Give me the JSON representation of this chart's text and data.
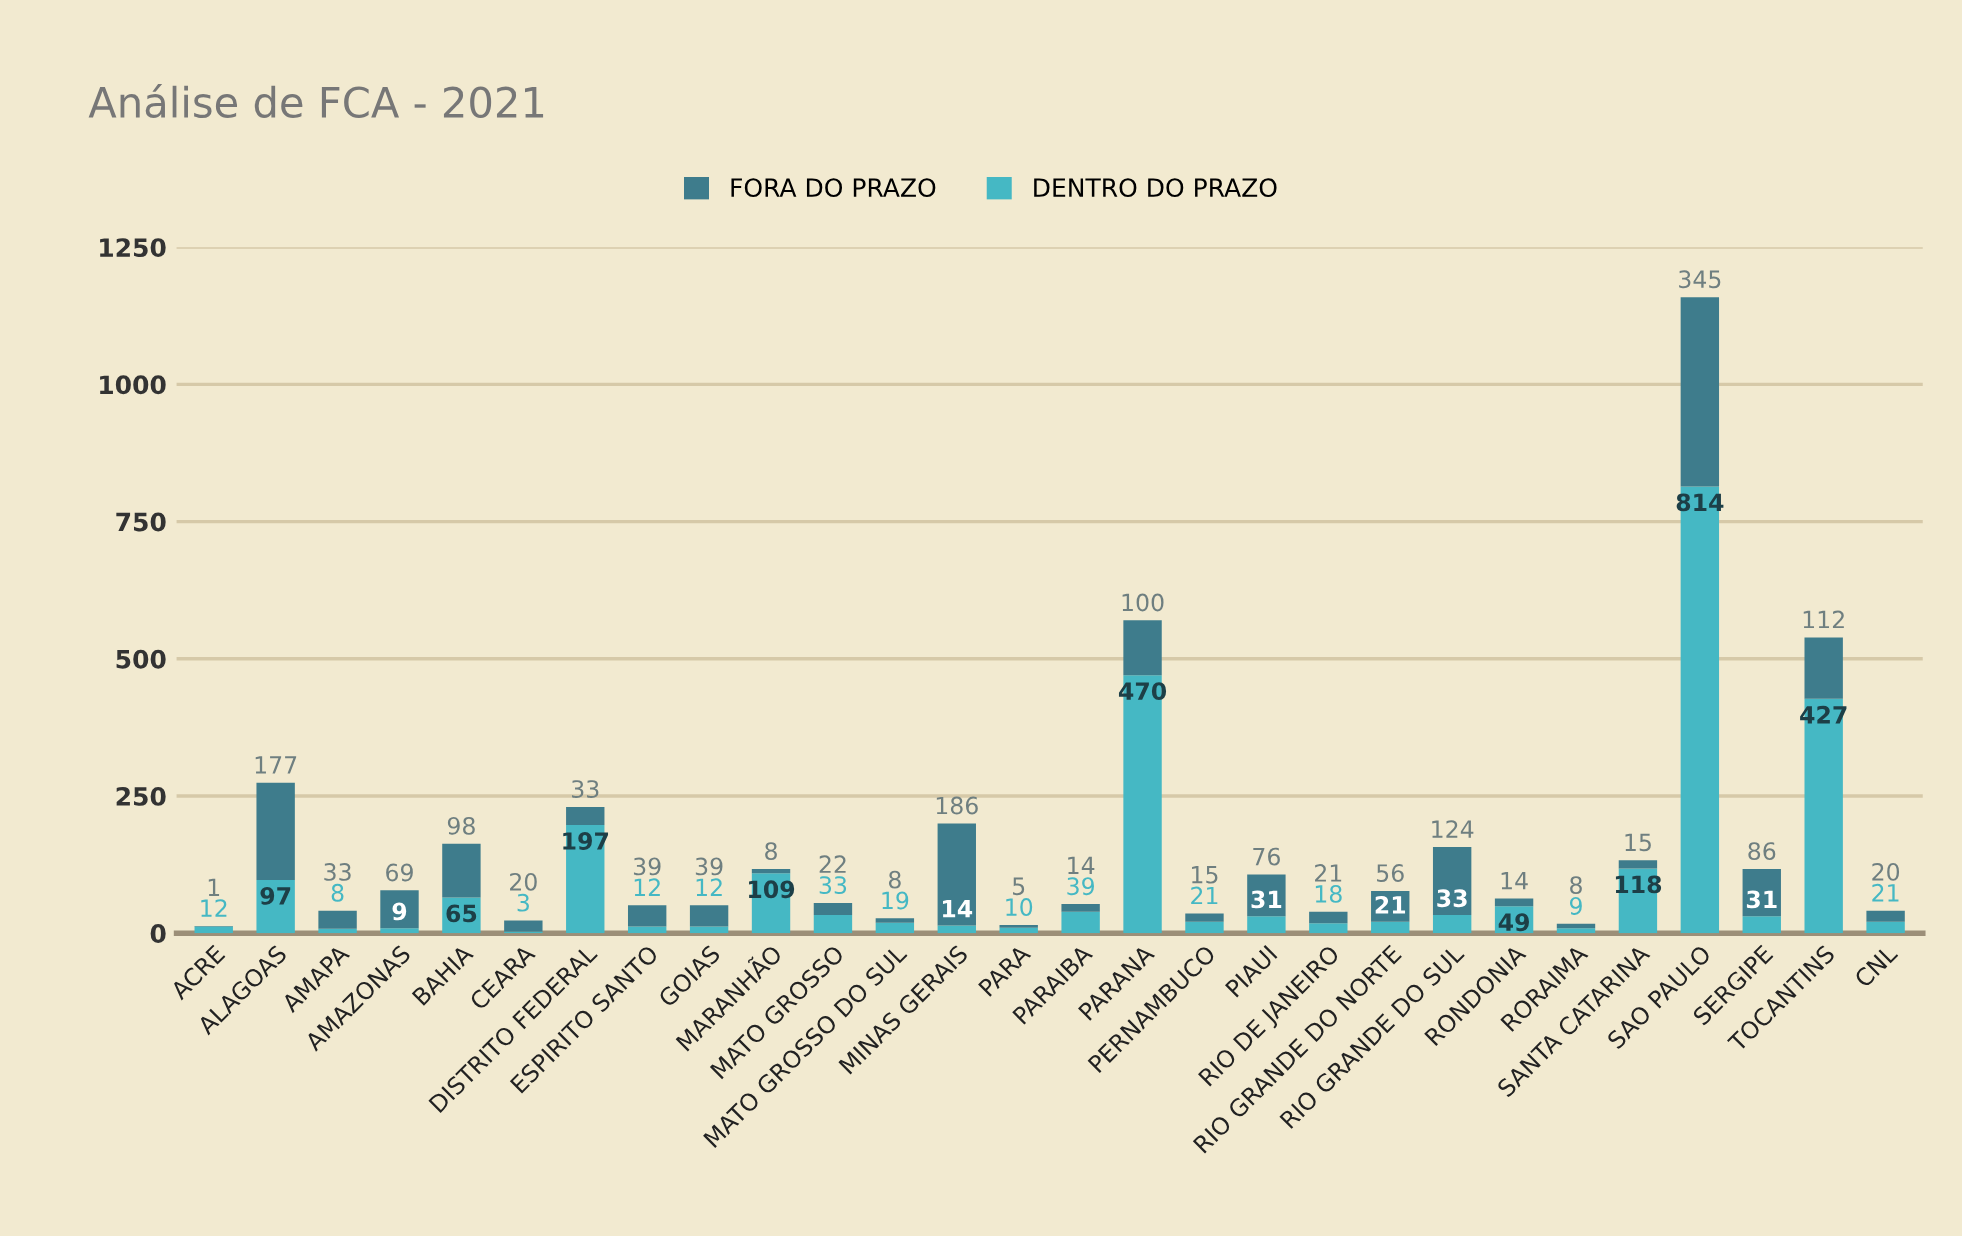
{
  "chart_data": {
    "type": "bar",
    "stacked": true,
    "title": "Análise de FCA - 2021",
    "categories": [
      "ACRE",
      "ALAGOAS",
      "AMAPA",
      "AMAZONAS",
      "BAHIA",
      "CEARA",
      "DISTRITO FEDERAL",
      "ESPIRITO SANTO",
      "GOIAS",
      "MARANHÃO",
      "MATO GROSSO",
      "MATO GROSSO DO SUL",
      "MINAS GERAIS",
      "PARA",
      "PARAIBA",
      "PARANA",
      "PERNAMBUCO",
      "PIAUI",
      "RIO DE JANEIRO",
      "RIO GRANDE DO NORTE",
      "RIO GRANDE DO SUL",
      "RONDONIA",
      "RORAIMA",
      "SANTA CATARINA",
      "SAO PAULO",
      "SERGIPE",
      "TOCANTINS",
      "CNL"
    ],
    "series": [
      {
        "name": "DENTRO DO PRAZO",
        "color": "#45b8c4",
        "values": [
          12,
          97,
          8,
          9,
          65,
          3,
          197,
          12,
          12,
          109,
          33,
          19,
          14,
          10,
          39,
          470,
          21,
          31,
          18,
          21,
          33,
          49,
          9,
          118,
          814,
          31,
          427,
          21
        ]
      },
      {
        "name": "FORA DO PRAZO",
        "color": "#3e7c8c",
        "values": [
          1,
          177,
          33,
          69,
          98,
          20,
          33,
          39,
          39,
          8,
          22,
          8,
          186,
          5,
          14,
          100,
          15,
          76,
          21,
          56,
          124,
          14,
          8,
          15,
          345,
          86,
          112,
          20
        ]
      }
    ],
    "ylim": [
      0,
      1250
    ],
    "yticks": [
      0,
      250,
      500,
      750,
      1000,
      1250
    ],
    "grid": "y",
    "legend": "top",
    "data_labels": true
  }
}
